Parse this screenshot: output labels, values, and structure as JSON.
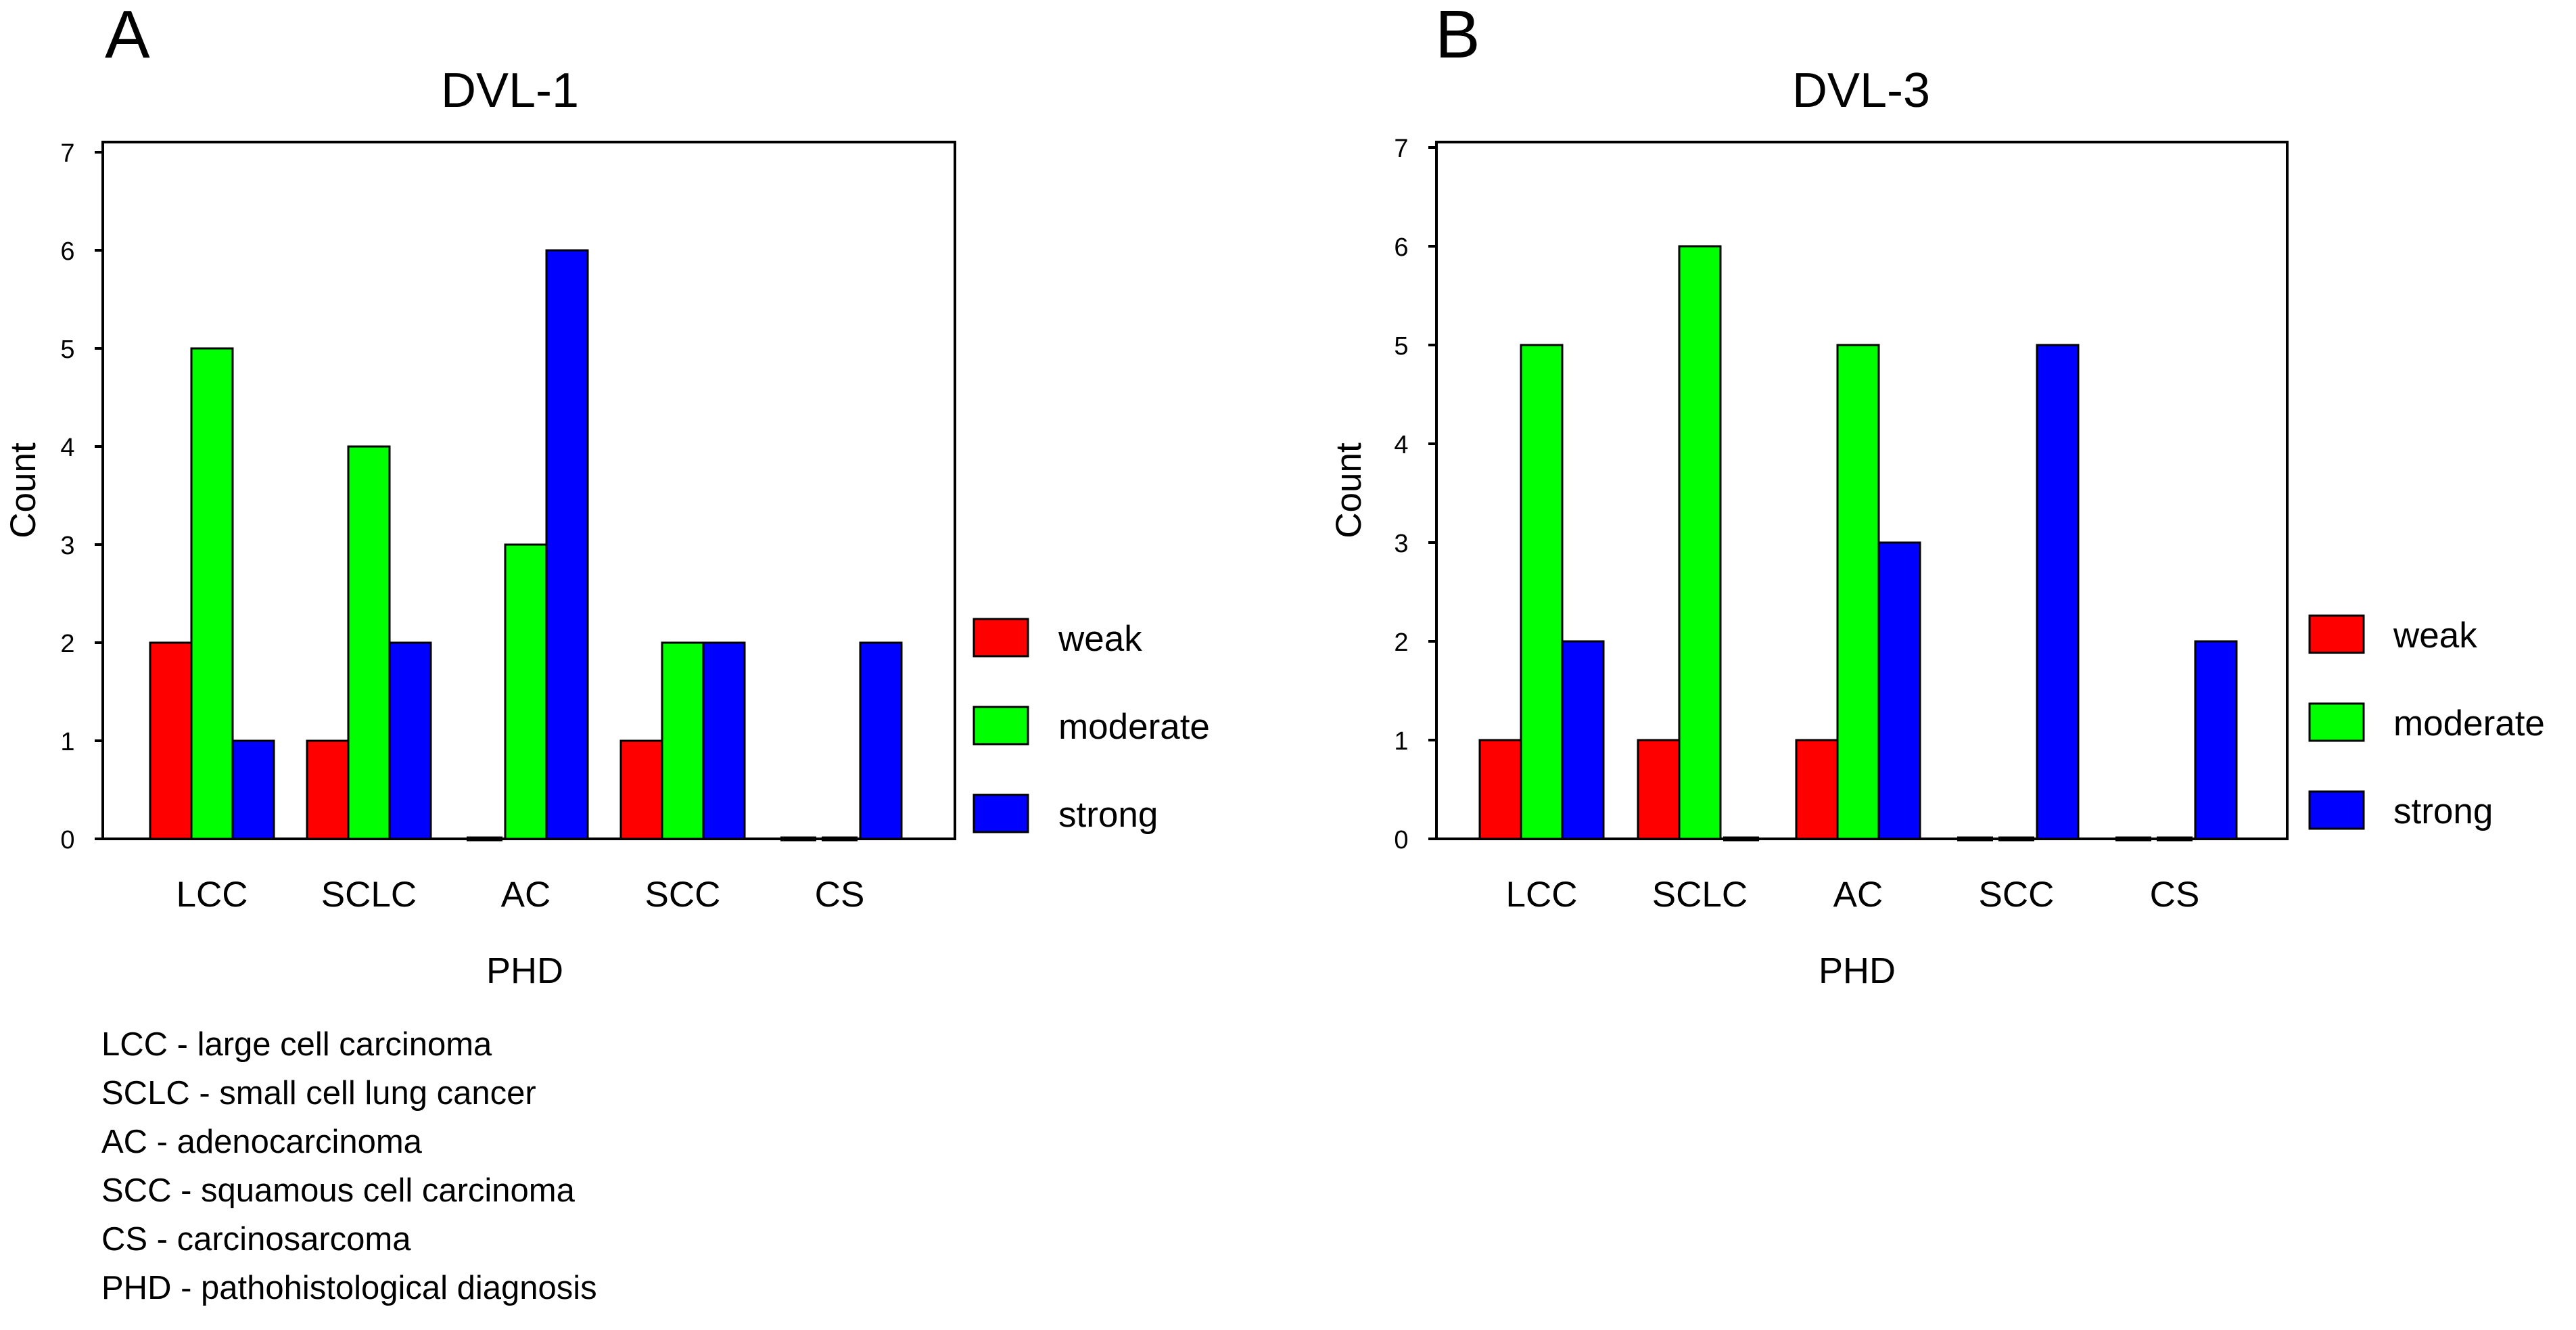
{
  "chart_data": [
    {
      "type": "bar",
      "panel_label": "A",
      "title": "DVL-1",
      "xlabel": "PHD",
      "ylabel": "Count",
      "ylim": [
        0,
        7
      ],
      "yticks": [
        "0",
        "1",
        "2",
        "3",
        "4",
        "5",
        "6",
        "7"
      ],
      "categories": [
        "LCC",
        "SCLC",
        "AC",
        "SCC",
        "CS"
      ],
      "series": [
        {
          "name": "weak",
          "color": "#ff0000",
          "values": [
            2,
            1,
            0,
            1,
            0
          ]
        },
        {
          "name": "moderate",
          "color": "#00ff00",
          "values": [
            5,
            4,
            3,
            2,
            0
          ]
        },
        {
          "name": "strong",
          "color": "#0000ff",
          "values": [
            1,
            2,
            6,
            2,
            2
          ]
        }
      ],
      "legend_position": "right"
    },
    {
      "type": "bar",
      "panel_label": "B",
      "title": "DVL-3",
      "xlabel": "PHD",
      "ylabel": "Count",
      "ylim": [
        0,
        7
      ],
      "yticks": [
        "0",
        "1",
        "2",
        "3",
        "4",
        "5",
        "6",
        "7"
      ],
      "categories": [
        "LCC",
        "SCLC",
        "AC",
        "SCC",
        "CS"
      ],
      "series": [
        {
          "name": "weak",
          "color": "#ff0000",
          "values": [
            1,
            1,
            1,
            0,
            0
          ]
        },
        {
          "name": "moderate",
          "color": "#00ff00",
          "values": [
            5,
            6,
            5,
            0,
            0
          ]
        },
        {
          "name": "strong",
          "color": "#0000ff",
          "values": [
            2,
            0,
            3,
            5,
            2
          ]
        }
      ],
      "legend_position": "right"
    }
  ],
  "abbreviations": {
    "lcc": "LCC -  large cell carcinoma",
    "sclc": "SCLC - small cell lung cancer",
    "ac": "AC - adenocarcinoma",
    "scc": "SCC - squamous cell carcinoma",
    "cs": "CS - carcinosarcoma",
    "phd": "PHD - pathohistological diagnosis"
  }
}
